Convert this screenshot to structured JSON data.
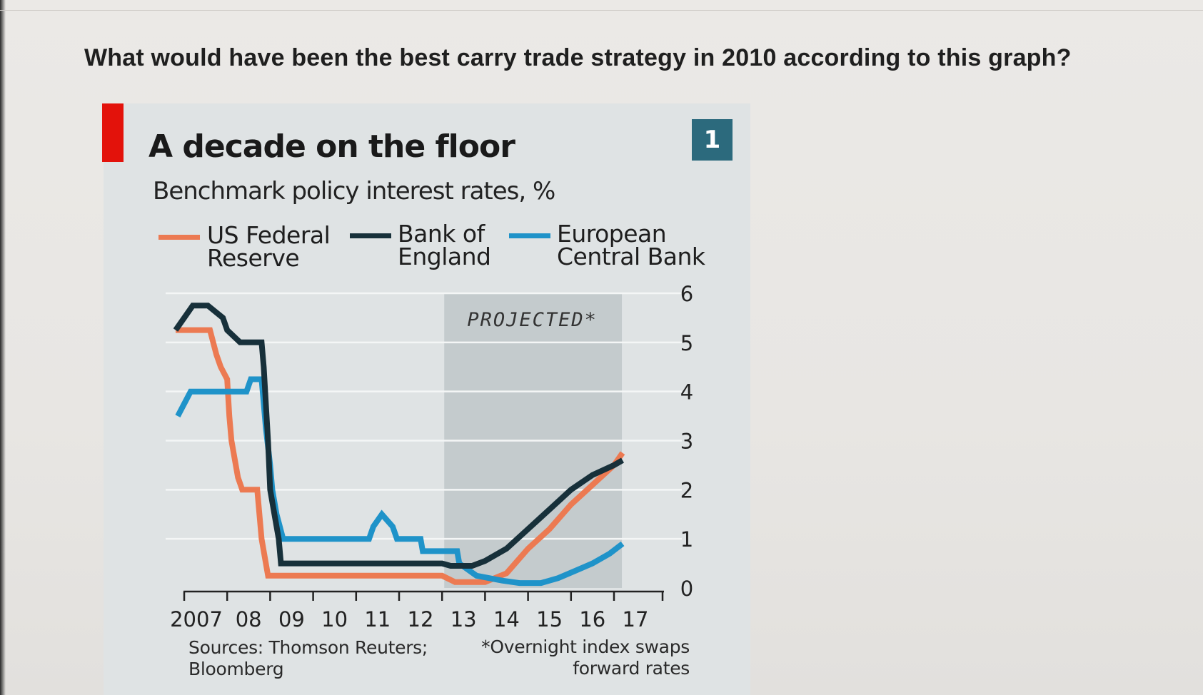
{
  "question": "What would have been the best carry trade strategy in 2010 according to this graph?",
  "badge": "1",
  "colors": {
    "fed": "#ec7a52",
    "boe": "#17303a",
    "ecb": "#1f93c9",
    "projected_band": "#c4cbcd",
    "accent_red": "#e3120b"
  },
  "legend": {
    "fed": {
      "line1": "US Federal",
      "line2": "Reserve"
    },
    "boe": {
      "line1": "Bank of",
      "line2": "England"
    },
    "ecb": {
      "line1": "European",
      "line2": "Central Bank"
    }
  },
  "sources": {
    "line1": "Sources: Thomson Reuters;",
    "line2": "Bloomberg"
  },
  "footnote": {
    "line1": "*Overnight index swaps",
    "line2": "forward rates"
  },
  "chart_data": {
    "type": "line",
    "title": "A decade on the floor",
    "subtitle": "Benchmark policy interest rates, %",
    "annotation": "PROJECTED*",
    "projected_range": [
      2013.0,
      2017.0
    ],
    "xlim": [
      2006.75,
      2018.0
    ],
    "ylim": [
      0,
      6
    ],
    "y_ticks": [
      "0",
      "1",
      "2",
      "3",
      "4",
      "5",
      "6"
    ],
    "x_ticks": [
      {
        "x": 2007,
        "label": "2007"
      },
      {
        "x": 2008,
        "label": "08"
      },
      {
        "x": 2009,
        "label": "09"
      },
      {
        "x": 2010,
        "label": "10"
      },
      {
        "x": 2011,
        "label": "11"
      },
      {
        "x": 2012,
        "label": "12"
      },
      {
        "x": 2013,
        "label": "13"
      },
      {
        "x": 2014,
        "label": "14"
      },
      {
        "x": 2015,
        "label": "15"
      },
      {
        "x": 2016,
        "label": "16"
      },
      {
        "x": 2017,
        "label": "17"
      }
    ],
    "series": [
      {
        "name": "US Federal Reserve",
        "key": "fed",
        "points": [
          [
            2006.8,
            5.25
          ],
          [
            2007.6,
            5.25
          ],
          [
            2007.75,
            4.75
          ],
          [
            2007.85,
            4.5
          ],
          [
            2008.0,
            4.25
          ],
          [
            2008.05,
            3.5
          ],
          [
            2008.1,
            3.0
          ],
          [
            2008.25,
            2.25
          ],
          [
            2008.35,
            2.0
          ],
          [
            2008.7,
            2.0
          ],
          [
            2008.8,
            1.0
          ],
          [
            2008.95,
            0.25
          ],
          [
            2013.0,
            0.25
          ],
          [
            2013.3,
            0.12
          ],
          [
            2014.0,
            0.12
          ],
          [
            2014.5,
            0.3
          ],
          [
            2015.0,
            0.8
          ],
          [
            2015.5,
            1.2
          ],
          [
            2016.0,
            1.7
          ],
          [
            2016.5,
            2.1
          ],
          [
            2017.0,
            2.5
          ],
          [
            2017.2,
            2.75
          ]
        ]
      },
      {
        "name": "Bank of England",
        "key": "boe",
        "points": [
          [
            2006.8,
            5.25
          ],
          [
            2007.0,
            5.5
          ],
          [
            2007.2,
            5.75
          ],
          [
            2007.55,
            5.75
          ],
          [
            2007.9,
            5.5
          ],
          [
            2008.0,
            5.25
          ],
          [
            2008.3,
            5.0
          ],
          [
            2008.8,
            5.0
          ],
          [
            2008.85,
            4.5
          ],
          [
            2008.95,
            3.0
          ],
          [
            2009.0,
            2.0
          ],
          [
            2009.1,
            1.5
          ],
          [
            2009.2,
            1.0
          ],
          [
            2009.25,
            0.5
          ],
          [
            2013.0,
            0.5
          ],
          [
            2013.2,
            0.45
          ],
          [
            2013.7,
            0.45
          ],
          [
            2014.0,
            0.55
          ],
          [
            2014.5,
            0.8
          ],
          [
            2015.0,
            1.2
          ],
          [
            2015.5,
            1.6
          ],
          [
            2016.0,
            2.0
          ],
          [
            2016.5,
            2.3
          ],
          [
            2017.0,
            2.5
          ],
          [
            2017.2,
            2.6
          ]
        ]
      },
      {
        "name": "European Central Bank",
        "key": "ecb",
        "points": [
          [
            2006.85,
            3.5
          ],
          [
            2007.0,
            3.75
          ],
          [
            2007.15,
            4.0
          ],
          [
            2008.45,
            4.0
          ],
          [
            2008.55,
            4.25
          ],
          [
            2008.8,
            4.25
          ],
          [
            2008.85,
            3.75
          ],
          [
            2008.9,
            3.25
          ],
          [
            2009.0,
            2.5
          ],
          [
            2009.05,
            2.0
          ],
          [
            2009.15,
            1.5
          ],
          [
            2009.3,
            1.0
          ],
          [
            2010.3,
            1.0
          ],
          [
            2011.3,
            1.0
          ],
          [
            2011.4,
            1.25
          ],
          [
            2011.6,
            1.5
          ],
          [
            2011.85,
            1.25
          ],
          [
            2011.95,
            1.0
          ],
          [
            2012.5,
            1.0
          ],
          [
            2012.55,
            0.75
          ],
          [
            2013.35,
            0.75
          ],
          [
            2013.4,
            0.5
          ],
          [
            2013.8,
            0.25
          ],
          [
            2014.4,
            0.15
          ],
          [
            2014.8,
            0.1
          ],
          [
            2015.3,
            0.1
          ],
          [
            2015.7,
            0.2
          ],
          [
            2016.1,
            0.35
          ],
          [
            2016.5,
            0.5
          ],
          [
            2016.9,
            0.7
          ],
          [
            2017.2,
            0.9
          ]
        ]
      }
    ]
  }
}
